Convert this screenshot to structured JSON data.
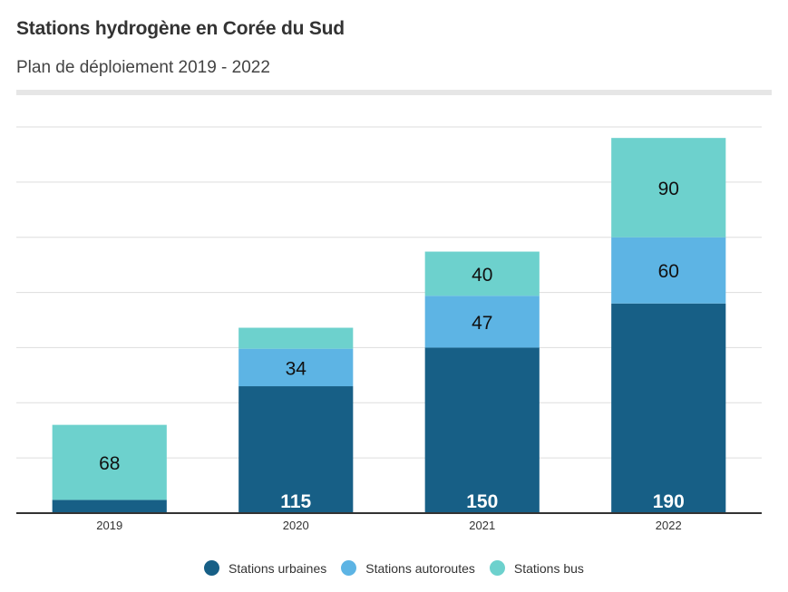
{
  "header": {
    "title": "Stations hydrogène en Corée du Sud",
    "subtitle": "Plan de déploiement 2019 - 2022"
  },
  "colors": {
    "urbaines": "#175f86",
    "autoroutes": "#5db4e4",
    "bus": "#6dd1cd",
    "grid": "#dddddd",
    "axis": "#333333"
  },
  "chart_data": {
    "type": "bar",
    "stacked": true,
    "title": "Stations hydrogène en Corée du Sud",
    "subtitle": "Plan de déploiement 2019 - 2022",
    "categories": [
      "2019",
      "2020",
      "2021",
      "2022"
    ],
    "series": [
      {
        "name": "Stations urbaines",
        "color": "#175f86",
        "values": [
          12,
          115,
          150,
          190
        ],
        "labels": [
          "",
          "115",
          "150",
          "190"
        ]
      },
      {
        "name": "Stations autoroutes",
        "color": "#5db4e4",
        "values": [
          0,
          34,
          47,
          60
        ],
        "labels": [
          "",
          "34",
          "47",
          "60"
        ]
      },
      {
        "name": "Stations bus",
        "color": "#6dd1cd",
        "values": [
          68,
          19,
          40,
          90
        ],
        "labels": [
          "68",
          "",
          "40",
          "90"
        ]
      }
    ],
    "ylim": [
      0,
      350
    ],
    "ytick_step": 50,
    "grid": true,
    "legend": "bottom-center"
  }
}
